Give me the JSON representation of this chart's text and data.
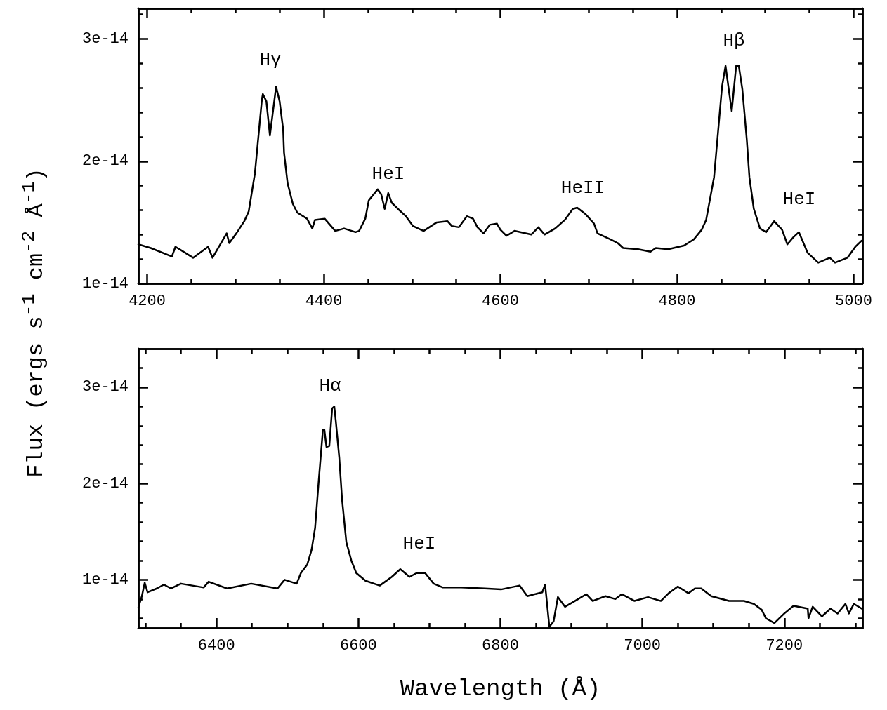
{
  "chart_data": [
    {
      "type": "line",
      "ylabel": "Flux (ergs s$^{-1}$ cm$^{-2}$ Å$^{-1}$)",
      "xlim": [
        4190,
        5010
      ],
      "ylim": [
        1e-14,
        3.25e-14
      ],
      "xticks": [
        4200,
        {
          "value": 4250,
          "label": null
        },
        {
          "value": 4300,
          "label": null
        },
        {
          "value": 4350,
          "label": null
        },
        4400,
        {
          "value": 4450,
          "label": null
        },
        {
          "value": 4500,
          "label": null
        },
        {
          "value": 4550,
          "label": null
        },
        4600,
        {
          "value": 4650,
          "label": null
        },
        {
          "value": 4700,
          "label": null
        },
        {
          "value": 4750,
          "label": null
        },
        4800,
        {
          "value": 4850,
          "label": null
        },
        {
          "value": 4900,
          "label": null
        },
        {
          "value": 4950,
          "label": null
        },
        5000
      ],
      "yticks": [
        1e-14,
        {
          "value": 1.2e-14,
          "label": null
        },
        {
          "value": 1.4e-14,
          "label": null
        },
        {
          "value": 1.6e-14,
          "label": null
        },
        {
          "value": 1.8e-14,
          "label": null
        },
        2e-14,
        {
          "value": 2.2e-14,
          "label": null
        },
        {
          "value": 2.4e-14,
          "label": null
        },
        {
          "value": 2.6e-14,
          "label": null
        },
        {
          "value": 2.8e-14,
          "label": null
        },
        3e-14,
        {
          "value": 3.2e-14,
          "label": null
        }
      ],
      "grid": false,
      "marker": "none",
      "line_style": "solid",
      "annotations": [
        "Hγ",
        "HeI",
        "HeII",
        "Hβ",
        "HeI"
      ],
      "series": [
        {
          "color": "#000000",
          "x": [
            4190,
            4204,
            4228,
            4232,
            4252,
            4269,
            4274,
            4290,
            4293,
            4301,
            4310,
            4315,
            4322,
            4330,
            4331,
            4335,
            4339,
            4346,
            4350,
            4354,
            4355,
            4359,
            4365,
            4370,
            4381,
            4387,
            4390,
            4401,
            4413,
            4423,
            4436,
            4440,
            4447,
            4451,
            4461,
            4465,
            4469,
            4473,
            4477,
            4484,
            4493,
            4501,
            4513,
            4528,
            4540,
            4545,
            4553,
            4562,
            4569,
            4574,
            4581,
            4588,
            4596,
            4600,
            4607,
            4616,
            4635,
            4643,
            4650,
            4662,
            4673,
            4682,
            4687,
            4696,
            4706,
            4710,
            4725,
            4733,
            4739,
            4756,
            4770,
            4776,
            4790,
            4808,
            4819,
            4828,
            4833,
            4842,
            4847,
            4851,
            4855,
            4862,
            4867,
            4870,
            4874,
            4879,
            4882,
            4887,
            4894,
            4901,
            4910,
            4919,
            4925,
            4932,
            4938,
            4948,
            4960,
            4973,
            4979,
            4993,
            5002,
            5009
          ],
          "values": [
            1.32e-14,
            1.29e-14,
            1.22e-14,
            1.3e-14,
            1.21e-14,
            1.3e-14,
            1.21e-14,
            1.41e-14,
            1.33e-14,
            1.41e-14,
            1.51e-14,
            1.59e-14,
            1.9e-14,
            2.51e-14,
            2.55e-14,
            2.49e-14,
            2.21e-14,
            2.61e-14,
            2.49e-14,
            2.26e-14,
            2.07e-14,
            1.82e-14,
            1.65e-14,
            1.58e-14,
            1.53e-14,
            1.45e-14,
            1.52e-14,
            1.53e-14,
            1.43e-14,
            1.45e-14,
            1.42e-14,
            1.43e-14,
            1.53e-14,
            1.68e-14,
            1.77e-14,
            1.73e-14,
            1.61e-14,
            1.74e-14,
            1.66e-14,
            1.61e-14,
            1.55e-14,
            1.47e-14,
            1.43e-14,
            1.5e-14,
            1.51e-14,
            1.47e-14,
            1.46e-14,
            1.55e-14,
            1.53e-14,
            1.46e-14,
            1.41e-14,
            1.48e-14,
            1.49e-14,
            1.44e-14,
            1.39e-14,
            1.43e-14,
            1.4e-14,
            1.46e-14,
            1.4e-14,
            1.45e-14,
            1.52e-14,
            1.61e-14,
            1.62e-14,
            1.57e-14,
            1.49e-14,
            1.41e-14,
            1.36e-14,
            1.33e-14,
            1.29e-14,
            1.28e-14,
            1.26e-14,
            1.29e-14,
            1.28e-14,
            1.31e-14,
            1.36e-14,
            1.44e-14,
            1.52e-14,
            1.87e-14,
            2.28e-14,
            2.61e-14,
            2.78e-14,
            2.41e-14,
            2.78e-14,
            2.78e-14,
            2.59e-14,
            2.18e-14,
            1.87e-14,
            1.61e-14,
            1.45e-14,
            1.42e-14,
            1.51e-14,
            1.44e-14,
            1.32e-14,
            1.38e-14,
            1.42e-14,
            1.25e-14,
            1.17e-14,
            1.21e-14,
            1.17e-14,
            1.21e-14,
            1.3e-14,
            1.35e-14
          ]
        }
      ]
    },
    {
      "type": "line",
      "xlabel": "Wavelength (Å)",
      "xlim": [
        6290,
        7310
      ],
      "ylim": [
        5e-15,
        3.4e-14
      ],
      "xticks": [
        {
          "value": 6300,
          "label": null
        },
        {
          "value": 6350,
          "label": null
        },
        6400,
        {
          "value": 6450,
          "label": null
        },
        {
          "value": 6500,
          "label": null
        },
        {
          "value": 6550,
          "label": null
        },
        6600,
        {
          "value": 6650,
          "label": null
        },
        {
          "value": 6700,
          "label": null
        },
        {
          "value": 6750,
          "label": null
        },
        6800,
        {
          "value": 6850,
          "label": null
        },
        {
          "value": 6900,
          "label": null
        },
        {
          "value": 6950,
          "label": null
        },
        7000,
        {
          "value": 7050,
          "label": null
        },
        {
          "value": 7100,
          "label": null
        },
        {
          "value": 7150,
          "label": null
        },
        7200,
        {
          "value": 7250,
          "label": null
        },
        {
          "value": 7300,
          "label": null
        }
      ],
      "yticks": [
        {
          "value": 6e-15,
          "label": null
        },
        {
          "value": 8e-15,
          "label": null
        },
        1e-14,
        {
          "value": 1.2e-14,
          "label": null
        },
        {
          "value": 1.4e-14,
          "label": null
        },
        {
          "value": 1.6e-14,
          "label": null
        },
        {
          "value": 1.8e-14,
          "label": null
        },
        2e-14,
        {
          "value": 2.2e-14,
          "label": null
        },
        {
          "value": 2.4e-14,
          "label": null
        },
        {
          "value": 2.6e-14,
          "label": null
        },
        {
          "value": 2.8e-14,
          "label": null
        },
        3e-14,
        {
          "value": 3.2e-14,
          "label": null
        }
      ],
      "grid": false,
      "marker": "none",
      "line_style": "solid",
      "annotations": [
        "Hα",
        "HeI"
      ],
      "series": [
        {
          "color": "#000000",
          "x": [
            6290,
            6295,
            6299,
            6303,
            6316,
            6326,
            6336,
            6350,
            6382,
            6389,
            6415,
            6449,
            6486,
            6496,
            6513,
            6519,
            6528,
            6534,
            6539,
            6544,
            6550,
            6552,
            6555,
            6559,
            6563,
            6566,
            6568,
            6573,
            6577,
            6583,
            6590,
            6597,
            6610,
            6630,
            6647,
            6659,
            6672,
            6682,
            6694,
            6706,
            6719,
            6745,
            6778,
            6801,
            6827,
            6838,
            6859,
            6863,
            6869,
            6875,
            6881,
            6891,
            6905,
            6921,
            6930,
            6948,
            6962,
            6971,
            6989,
            7008,
            7026,
            7037,
            7050,
            7065,
            7074,
            7083,
            7097,
            7122,
            7143,
            7157,
            7168,
            7174,
            7186,
            7200,
            7213,
            7233,
            7234,
            7240,
            7253,
            7265,
            7275,
            7286,
            7291,
            7298,
            7309
          ],
          "values": [
            7.1e-15,
            8.3e-15,
            9.7e-15,
            8.7e-15,
            9.1e-15,
            9.5e-15,
            9.1e-15,
            9.6e-15,
            9.2e-15,
            9.8e-15,
            9.1e-15,
            9.6e-15,
            9.1e-15,
            1e-14,
            9.6e-15,
            1.07e-14,
            1.16e-14,
            1.31e-14,
            1.54e-14,
            2.02e-14,
            2.56e-14,
            2.56e-14,
            2.38e-14,
            2.39e-14,
            2.78e-14,
            2.8e-14,
            2.66e-14,
            2.27e-14,
            1.83e-14,
            1.39e-14,
            1.2e-14,
            1.07e-14,
            9.9e-15,
            9.4e-15,
            1.03e-14,
            1.11e-14,
            1.03e-14,
            1.07e-14,
            1.07e-14,
            9.6e-15,
            9.2e-15,
            9.2e-15,
            9.1e-15,
            9e-15,
            9.4e-15,
            8.3e-15,
            8.7e-15,
            9.5e-15,
            5.1e-15,
            5.7e-15,
            8.2e-15,
            7.2e-15,
            7.8e-15,
            8.5e-15,
            7.8e-15,
            8.3e-15,
            8e-15,
            8.5e-15,
            7.8e-15,
            8.2e-15,
            7.8e-15,
            8.6e-15,
            9.3e-15,
            8.6e-15,
            9.1e-15,
            9.1e-15,
            8.3e-15,
            7.8e-15,
            7.8e-15,
            7.5e-15,
            6.9e-15,
            6e-15,
            5.5e-15,
            6.5e-15,
            7.3e-15,
            7e-15,
            6e-15,
            7.2e-15,
            6.2e-15,
            7e-15,
            6.5e-15,
            7.5e-15,
            6.5e-15,
            7.5e-15,
            7e-15
          ]
        }
      ]
    }
  ]
}
